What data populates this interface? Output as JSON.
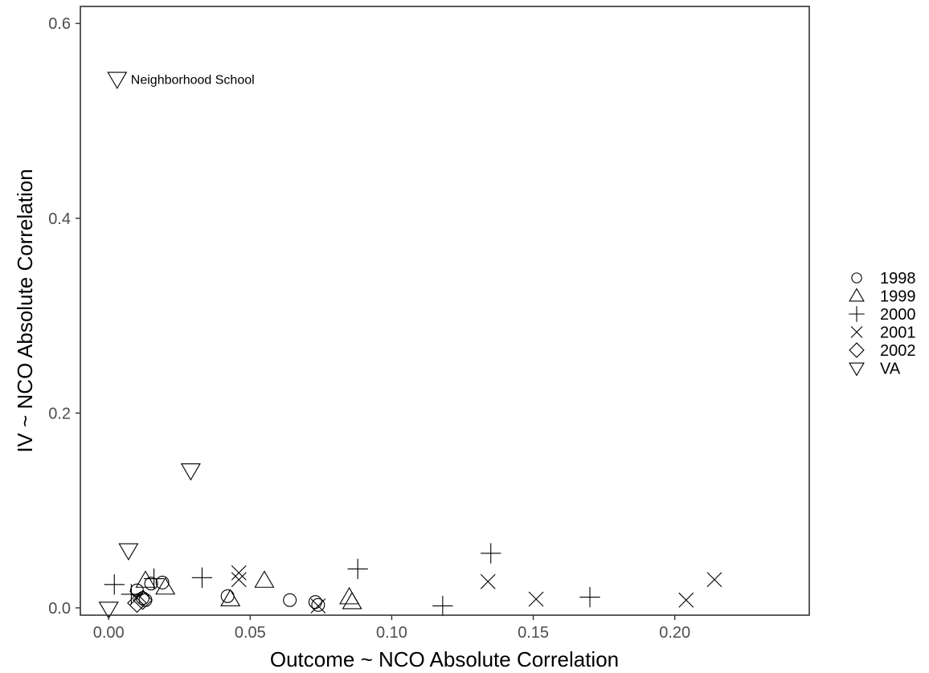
{
  "chart_data": {
    "type": "scatter",
    "title": "",
    "xlabel": "Outcome ~ NCO Absolute Correlation",
    "ylabel": "IV ~ NCO Absolute Correlation",
    "xlim": [
      -0.01,
      0.2475
    ],
    "ylim": [
      -0.0075,
      0.6175
    ],
    "x_ticks": [
      0.0,
      0.05,
      0.1,
      0.15,
      0.2
    ],
    "x_tick_labels": [
      "0.00",
      "0.05",
      "0.10",
      "0.15",
      "0.20"
    ],
    "y_ticks": [
      0.0,
      0.2,
      0.4,
      0.6
    ],
    "y_tick_labels": [
      "0.0",
      "0.2",
      "0.4",
      "0.6"
    ],
    "grid": false,
    "legend_position": "right",
    "series": [
      {
        "name": "1998",
        "shape": "circle",
        "points": [
          [
            0.01,
            0.018
          ],
          [
            0.012,
            0.01
          ],
          [
            0.013,
            0.008
          ],
          [
            0.015,
            0.025
          ],
          [
            0.019,
            0.026
          ],
          [
            0.042,
            0.012
          ],
          [
            0.064,
            0.008
          ],
          [
            0.073,
            0.006
          ],
          [
            0.074,
            0.003
          ]
        ]
      },
      {
        "name": "1999",
        "shape": "triangle-up",
        "points": [
          [
            0.013,
            0.028
          ],
          [
            0.02,
            0.021
          ],
          [
            0.043,
            0.009
          ],
          [
            0.055,
            0.028
          ],
          [
            0.085,
            0.011
          ],
          [
            0.086,
            0.006
          ]
        ]
      },
      {
        "name": "2000",
        "shape": "plus",
        "points": [
          [
            0.002,
            0.024
          ],
          [
            0.008,
            0.014
          ],
          [
            0.016,
            0.03
          ],
          [
            0.033,
            0.031
          ],
          [
            0.088,
            0.04
          ],
          [
            0.118,
            0.002
          ],
          [
            0.135,
            0.056
          ],
          [
            0.17,
            0.011
          ]
        ]
      },
      {
        "name": "2001",
        "shape": "cross",
        "points": [
          [
            0.01,
            0.01
          ],
          [
            0.046,
            0.029
          ],
          [
            0.046,
            0.036
          ],
          [
            0.074,
            0.002
          ],
          [
            0.134,
            0.027
          ],
          [
            0.151,
            0.009
          ],
          [
            0.204,
            0.008
          ],
          [
            0.214,
            0.029
          ]
        ]
      },
      {
        "name": "2002",
        "shape": "diamond",
        "points": [
          [
            0.01,
            0.005
          ],
          [
            0.012,
            0.008
          ]
        ]
      },
      {
        "name": "VA",
        "shape": "triangle-down",
        "points": [
          [
            0.0,
            -0.001
          ],
          [
            0.007,
            0.059
          ],
          [
            0.029,
            0.141
          ],
          [
            0.003,
            0.543
          ]
        ]
      }
    ],
    "annotations": [
      {
        "text": "Neighborhood School",
        "x": 0.003,
        "y": 0.543
      }
    ]
  }
}
